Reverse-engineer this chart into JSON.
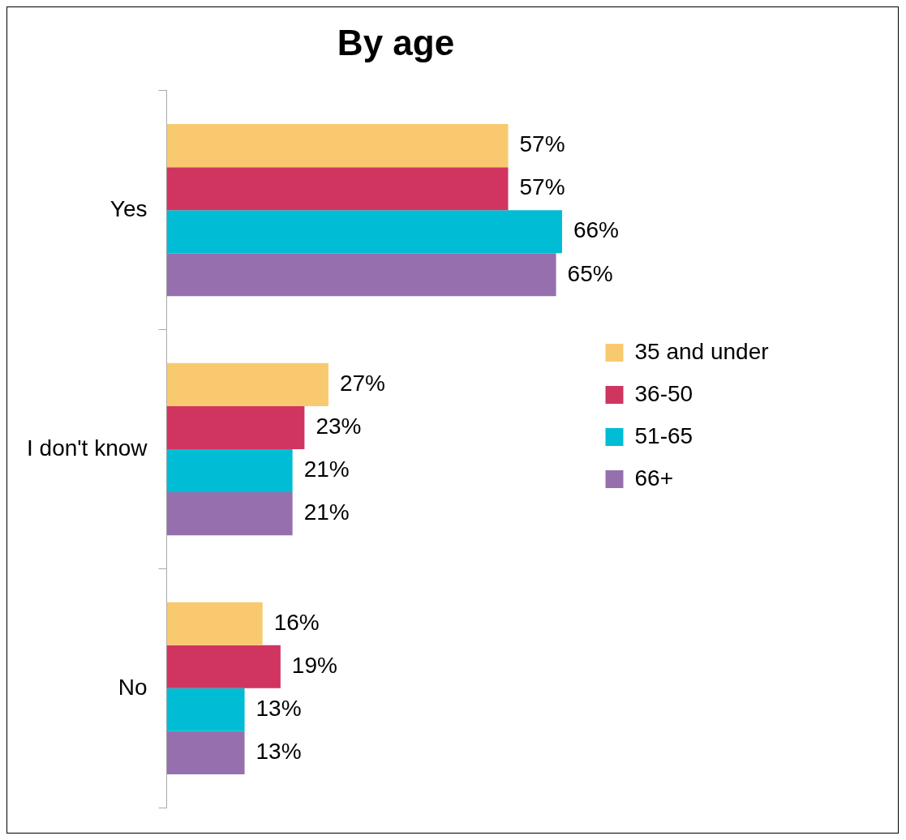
{
  "chart_data": {
    "type": "bar",
    "orientation": "horizontal",
    "title": "By age",
    "categories": [
      "Yes",
      "I don't know",
      "No"
    ],
    "series": [
      {
        "name": "35 and under",
        "color": "#f9c96f",
        "values": [
          57,
          27,
          16
        ],
        "value_labels": [
          "57%",
          "27%",
          "16%"
        ]
      },
      {
        "name": "36-50",
        "color": "#d03560",
        "values": [
          57,
          23,
          19
        ],
        "value_labels": [
          "57%",
          "23%",
          "19%"
        ]
      },
      {
        "name": "51-65",
        "color": "#00bcd4",
        "values": [
          66,
          21,
          13
        ],
        "value_labels": [
          "66%",
          "21%",
          "13%"
        ]
      },
      {
        "name": "66+",
        "color": "#9670ae",
        "values": [
          65,
          21,
          13
        ],
        "value_labels": [
          "65%",
          "21%",
          "13%"
        ]
      }
    ],
    "legend": "right",
    "tick_labels": "y"
  }
}
